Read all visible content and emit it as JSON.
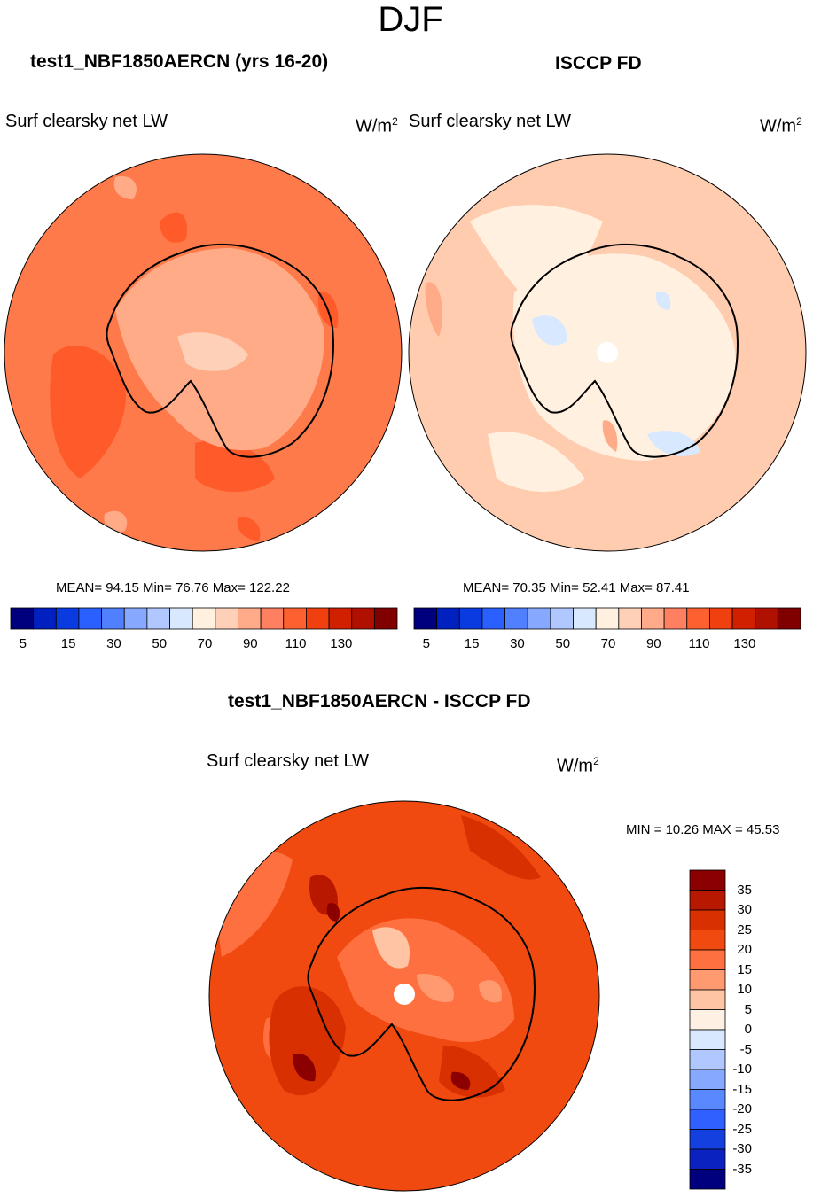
{
  "page_title": "DJF",
  "colors": {
    "land_outline": "#000000",
    "hole": "#ffffff"
  },
  "panels": [
    {
      "id": "model",
      "title": "test1_NBF1850AERCN (yrs 16-20)",
      "variable": "Surf clearsky net LW",
      "units_base": "W/m",
      "units_exp": "2",
      "stats_text": "MEAN=  94.15  Min=  76.76  Max= 122.22"
    },
    {
      "id": "obs",
      "title": "ISCCP FD",
      "variable": "Surf clearsky net LW",
      "units_base": "W/m",
      "units_exp": "2",
      "stats_text": "MEAN=  70.35  Min=  52.41  Max=  87.41"
    },
    {
      "id": "diff",
      "title": "test1_NBF1850AERCN - ISCCP FD",
      "variable": "Surf clearsky net LW",
      "units_base": "W/m",
      "units_exp": "2",
      "stats_text": "MIN =  10.26 MAX =  45.53"
    }
  ],
  "chart_data": [
    {
      "type": "heatmap",
      "projection": "south-polar-stereographic",
      "title": "test1_NBF1850AERCN (yrs 16-20)",
      "variable": "Surf clearsky net LW",
      "units": "W/m2",
      "mean": 94.15,
      "min": 76.76,
      "max": 122.22,
      "contour_levels": [
        5,
        10,
        15,
        20,
        30,
        40,
        50,
        60,
        70,
        80,
        90,
        100,
        110,
        120,
        130
      ],
      "colorbar_tick_labels": [
        "5",
        "15",
        "30",
        "50",
        "70",
        "90",
        "110",
        "130"
      ],
      "colorbar_colors": [
        "#00007f",
        "#0020c0",
        "#0a3be0",
        "#2a60ff",
        "#5080ff",
        "#86a8ff",
        "#b0c8ff",
        "#d8e8ff",
        "#fff0e0",
        "#ffd0b8",
        "#ffaa88",
        "#ff8060",
        "#ff6030",
        "#f04010",
        "#d02000",
        "#b01000",
        "#800000"
      ],
      "dominant_level_color": "#ff7a4a"
    },
    {
      "type": "heatmap",
      "projection": "south-polar-stereographic",
      "title": "ISCCP FD",
      "variable": "Surf clearsky net LW",
      "units": "W/m2",
      "mean": 70.35,
      "min": 52.41,
      "max": 87.41,
      "contour_levels": [
        5,
        10,
        15,
        20,
        30,
        40,
        50,
        60,
        70,
        80,
        90,
        100,
        110,
        120,
        130
      ],
      "colorbar_tick_labels": [
        "5",
        "15",
        "30",
        "50",
        "70",
        "90",
        "110",
        "130"
      ],
      "colorbar_colors": [
        "#00007f",
        "#0020c0",
        "#0a3be0",
        "#2a60ff",
        "#5080ff",
        "#86a8ff",
        "#b0c8ff",
        "#d8e8ff",
        "#fff0e0",
        "#ffd0b8",
        "#ffaa88",
        "#ff8060",
        "#ff6030",
        "#f04010",
        "#d02000",
        "#b01000",
        "#800000"
      ],
      "dominant_level_color": "#ffccb0"
    },
    {
      "type": "heatmap",
      "projection": "south-polar-stereographic",
      "title": "test1_NBF1850AERCN - ISCCP FD",
      "variable": "Surf clearsky net LW",
      "units": "W/m2",
      "min": 10.26,
      "max": 45.53,
      "contour_levels": [
        -35,
        -30,
        -25,
        -20,
        -15,
        -10,
        -5,
        0,
        5,
        10,
        15,
        20,
        25,
        30,
        35
      ],
      "colorbar_tick_labels": [
        "35",
        "30",
        "25",
        "20",
        "15",
        "10",
        "5",
        "0",
        "-5",
        "-10",
        "-15",
        "-20",
        "-25",
        "-30",
        "-35"
      ],
      "colorbar_colors": [
        "#8b0000",
        "#b81800",
        "#d83000",
        "#f04a10",
        "#ff7040",
        "#ff9a70",
        "#ffc4a4",
        "#fff0e4",
        "#d8e8ff",
        "#b0c8ff",
        "#86a8ff",
        "#5a88ff",
        "#3060ff",
        "#1440e0",
        "#0a22c0",
        "#00007f"
      ],
      "dominant_level_color": "#f04a10"
    }
  ]
}
